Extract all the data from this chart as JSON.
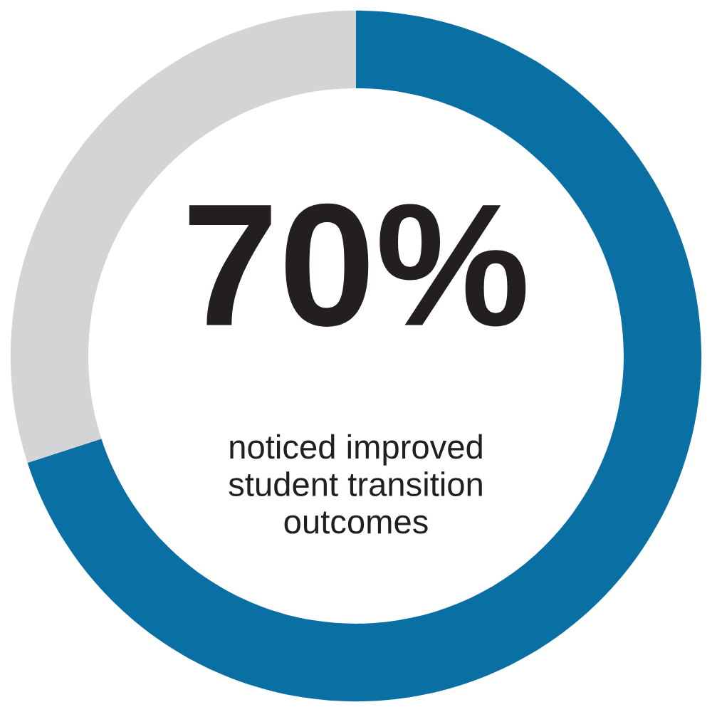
{
  "chart_data": {
    "type": "donut",
    "categories": [
      "noticed improved\nstudent transition\noutcomes",
      null
    ],
    "values": [
      70,
      30
    ],
    "colors": [
      "#0a6fa3",
      "#d3d4d6"
    ],
    "value_labels": [
      "70%",
      null
    ]
  }
}
